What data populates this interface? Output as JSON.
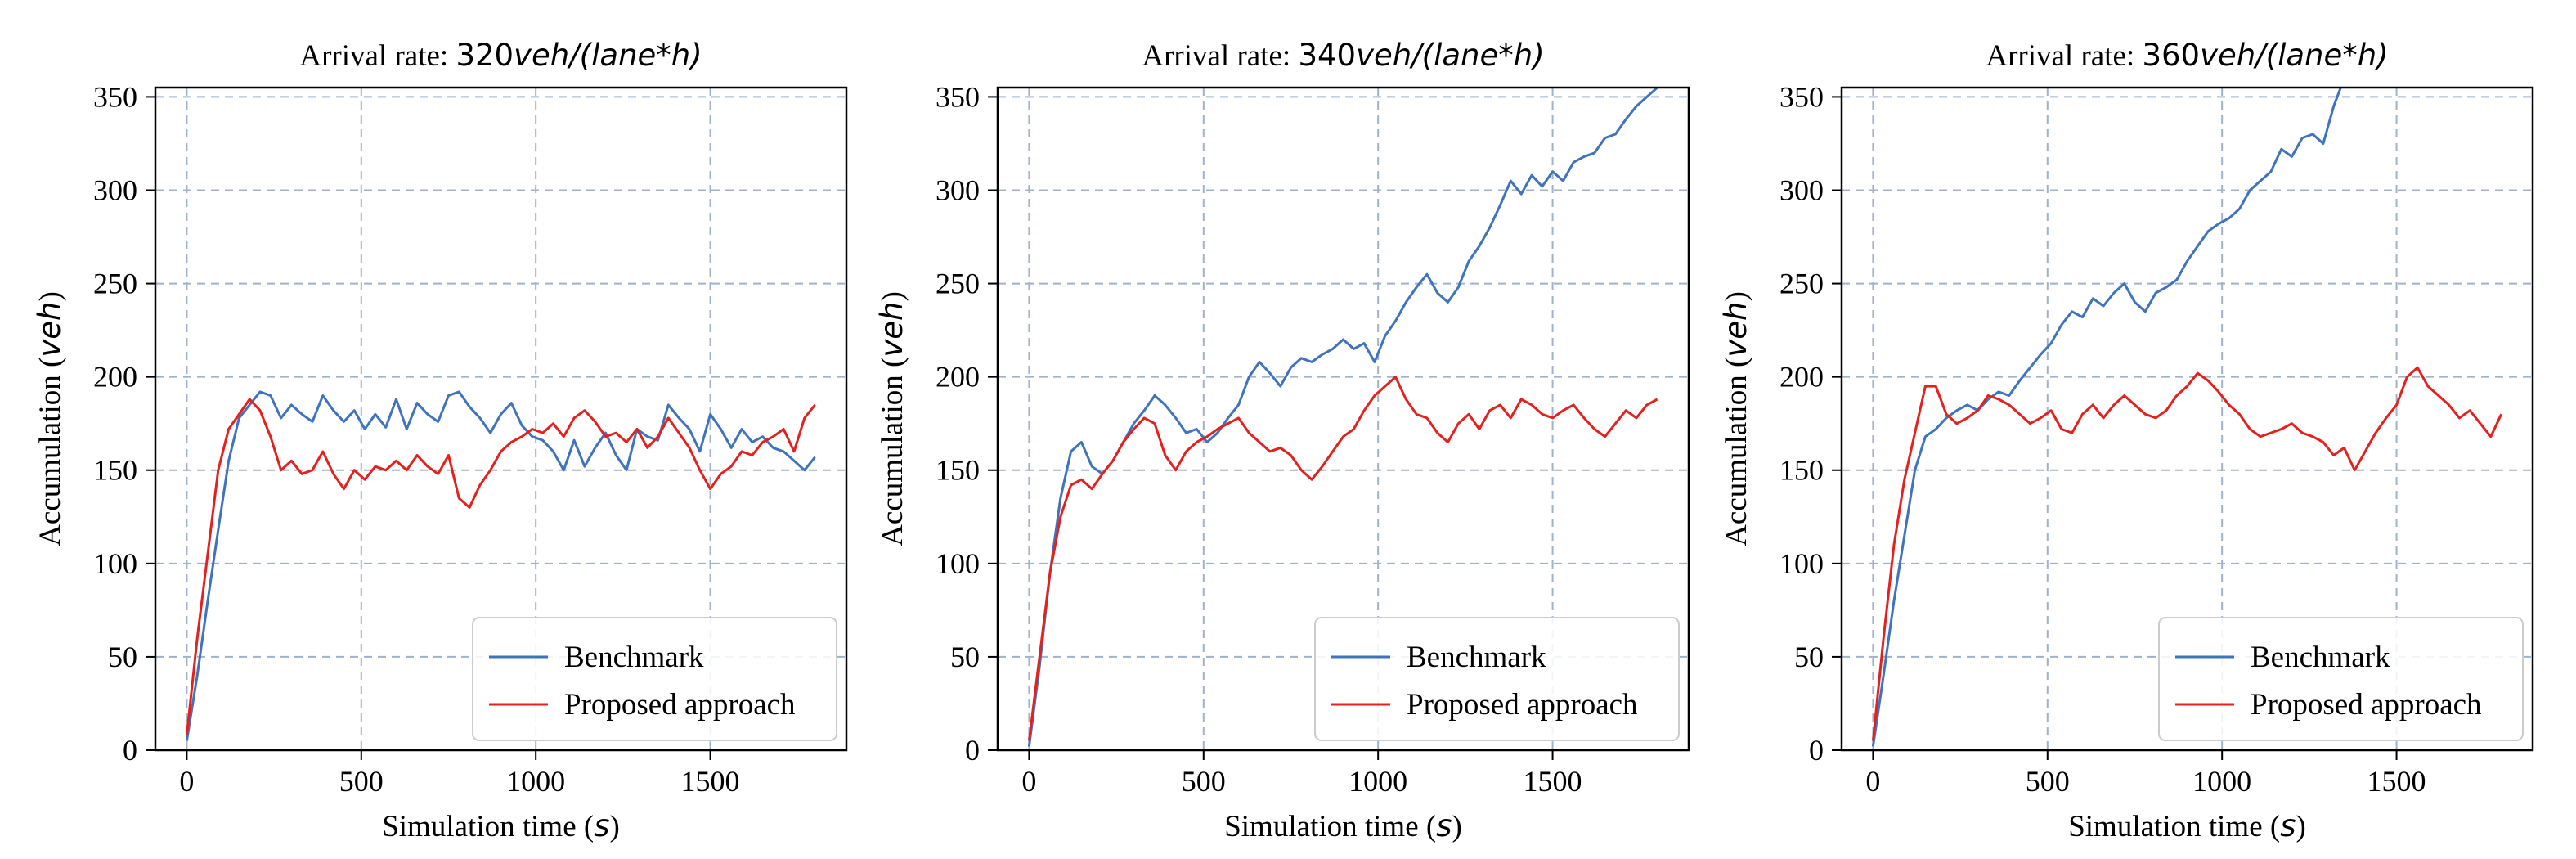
{
  "colors": {
    "benchmark": "#3f73bd",
    "proposed": "#e3211f",
    "grid": "#9fb2cc",
    "axes": "#000000"
  },
  "chart_data": [
    {
      "type": "line",
      "title_prefix": "Arrival rate: ",
      "title_math": "320",
      "title_unit": "veh/(lane*h)",
      "xlabel_text": "Simulation time (",
      "xlabel_unit": "s",
      "ylabel_text": "Accumulation (",
      "ylabel_unit": "veh",
      "xlim": [
        -90,
        1890
      ],
      "ylim": [
        0,
        355
      ],
      "xticks": [
        0,
        500,
        1000,
        1500
      ],
      "yticks": [
        0,
        50,
        100,
        150,
        200,
        250,
        300,
        350
      ],
      "grid": true,
      "legend_position": "lower-right",
      "series": [
        {
          "name": "Benchmark",
          "x": [
            0,
            30,
            60,
            90,
            120,
            150,
            180,
            210,
            240,
            270,
            300,
            330,
            360,
            390,
            420,
            450,
            480,
            510,
            540,
            570,
            600,
            630,
            660,
            690,
            720,
            750,
            780,
            810,
            840,
            870,
            900,
            930,
            960,
            990,
            1020,
            1050,
            1080,
            1110,
            1140,
            1170,
            1200,
            1230,
            1260,
            1290,
            1320,
            1350,
            1380,
            1410,
            1440,
            1470,
            1500,
            1530,
            1560,
            1590,
            1620,
            1650,
            1680,
            1710,
            1740,
            1770,
            1800
          ],
          "y": [
            5,
            40,
            80,
            118,
            155,
            178,
            185,
            192,
            190,
            178,
            185,
            180,
            176,
            190,
            182,
            176,
            182,
            172,
            180,
            173,
            188,
            172,
            186,
            180,
            176,
            190,
            192,
            184,
            178,
            170,
            180,
            186,
            174,
            168,
            166,
            160,
            150,
            166,
            152,
            162,
            170,
            158,
            150,
            172,
            168,
            166,
            185,
            178,
            172,
            160,
            180,
            172,
            162,
            172,
            165,
            168,
            162,
            160,
            155,
            150,
            157
          ]
        },
        {
          "name": "Proposed approach",
          "x": [
            0,
            30,
            60,
            90,
            120,
            150,
            180,
            210,
            240,
            270,
            300,
            330,
            360,
            390,
            420,
            450,
            480,
            510,
            540,
            570,
            600,
            630,
            660,
            690,
            720,
            750,
            780,
            810,
            840,
            870,
            900,
            930,
            960,
            990,
            1020,
            1050,
            1080,
            1110,
            1140,
            1170,
            1200,
            1230,
            1260,
            1290,
            1320,
            1350,
            1380,
            1410,
            1440,
            1470,
            1500,
            1530,
            1560,
            1590,
            1620,
            1650,
            1680,
            1710,
            1740,
            1770,
            1800
          ],
          "y": [
            8,
            60,
            105,
            150,
            172,
            180,
            188,
            182,
            168,
            150,
            155,
            148,
            150,
            160,
            148,
            140,
            150,
            145,
            152,
            150,
            155,
            150,
            158,
            152,
            148,
            158,
            135,
            130,
            142,
            150,
            160,
            165,
            168,
            172,
            170,
            175,
            168,
            178,
            182,
            176,
            168,
            170,
            165,
            172,
            162,
            168,
            178,
            170,
            162,
            150,
            140,
            148,
            152,
            160,
            158,
            165,
            168,
            172,
            160,
            178,
            185
          ]
        }
      ]
    },
    {
      "type": "line",
      "title_prefix": "Arrival rate: ",
      "title_math": "340",
      "title_unit": "veh/(lane*h)",
      "xlabel_text": "Simulation time (",
      "xlabel_unit": "s",
      "ylabel_text": "Accumulation (",
      "ylabel_unit": "veh",
      "xlim": [
        -90,
        1890
      ],
      "ylim": [
        0,
        355
      ],
      "xticks": [
        0,
        500,
        1000,
        1500
      ],
      "yticks": [
        0,
        50,
        100,
        150,
        200,
        250,
        300,
        350
      ],
      "grid": true,
      "legend_position": "lower-right",
      "series": [
        {
          "name": "Benchmark",
          "x": [
            0,
            30,
            60,
            90,
            120,
            150,
            180,
            210,
            240,
            270,
            300,
            330,
            360,
            390,
            420,
            450,
            480,
            510,
            540,
            570,
            600,
            630,
            660,
            690,
            720,
            750,
            780,
            810,
            840,
            870,
            900,
            930,
            960,
            990,
            1020,
            1050,
            1080,
            1110,
            1140,
            1170,
            1200,
            1230,
            1260,
            1290,
            1320,
            1350,
            1380,
            1410,
            1440,
            1470,
            1500,
            1530,
            1560,
            1590,
            1620,
            1650,
            1680,
            1710,
            1740,
            1770,
            1800
          ],
          "y": [
            2,
            45,
            95,
            135,
            160,
            165,
            152,
            148,
            155,
            165,
            175,
            182,
            190,
            185,
            178,
            170,
            172,
            165,
            170,
            178,
            185,
            200,
            208,
            202,
            195,
            205,
            210,
            208,
            212,
            215,
            220,
            215,
            218,
            208,
            222,
            230,
            240,
            248,
            255,
            245,
            240,
            248,
            262,
            270,
            280,
            292,
            305,
            298,
            308,
            302,
            310,
            305,
            315,
            318,
            320,
            328,
            330,
            338,
            345,
            350,
            355
          ]
        },
        {
          "name": "Proposed approach",
          "x": [
            0,
            30,
            60,
            90,
            120,
            150,
            180,
            210,
            240,
            270,
            300,
            330,
            360,
            390,
            420,
            450,
            480,
            510,
            540,
            570,
            600,
            630,
            660,
            690,
            720,
            750,
            780,
            810,
            840,
            870,
            900,
            930,
            960,
            990,
            1020,
            1050,
            1080,
            1110,
            1140,
            1170,
            1200,
            1230,
            1260,
            1290,
            1320,
            1350,
            1380,
            1410,
            1440,
            1470,
            1500,
            1530,
            1560,
            1590,
            1620,
            1650,
            1680,
            1710,
            1740,
            1770,
            1800
          ],
          "y": [
            5,
            50,
            95,
            125,
            142,
            145,
            140,
            148,
            155,
            165,
            172,
            178,
            175,
            158,
            150,
            160,
            165,
            168,
            172,
            175,
            178,
            170,
            165,
            160,
            162,
            158,
            150,
            145,
            152,
            160,
            168,
            172,
            182,
            190,
            195,
            200,
            188,
            180,
            178,
            170,
            165,
            175,
            180,
            172,
            182,
            185,
            178,
            188,
            185,
            180,
            178,
            182,
            185,
            178,
            172,
            168,
            175,
            182,
            178,
            185,
            188
          ]
        }
      ]
    },
    {
      "type": "line",
      "title_prefix": "Arrival rate: ",
      "title_math": "360",
      "title_unit": "veh/(lane*h)",
      "xlabel_text": "Simulation time (",
      "xlabel_unit": "s",
      "ylabel_text": "Accumulation (",
      "ylabel_unit": "veh",
      "xlim": [
        -90,
        1890
      ],
      "ylim": [
        0,
        355
      ],
      "xticks": [
        0,
        500,
        1000,
        1500
      ],
      "yticks": [
        0,
        50,
        100,
        150,
        200,
        250,
        300,
        350
      ],
      "grid": true,
      "legend_position": "lower-right",
      "series": [
        {
          "name": "Benchmark",
          "x": [
            0,
            30,
            60,
            90,
            120,
            150,
            180,
            210,
            240,
            270,
            300,
            330,
            360,
            390,
            420,
            450,
            480,
            510,
            540,
            570,
            600,
            630,
            660,
            690,
            720,
            750,
            780,
            810,
            840,
            870,
            900,
            930,
            960,
            990,
            1020,
            1050,
            1080,
            1110,
            1140,
            1170,
            1200,
            1230,
            1260,
            1290,
            1320,
            1340
          ],
          "y": [
            2,
            40,
            80,
            115,
            150,
            168,
            172,
            178,
            182,
            185,
            182,
            188,
            192,
            190,
            198,
            205,
            212,
            218,
            228,
            235,
            232,
            242,
            238,
            245,
            250,
            240,
            235,
            245,
            248,
            252,
            262,
            270,
            278,
            282,
            285,
            290,
            300,
            305,
            310,
            322,
            318,
            328,
            330,
            325,
            345,
            355
          ]
        },
        {
          "name": "Proposed approach",
          "x": [
            0,
            30,
            60,
            90,
            120,
            150,
            180,
            210,
            240,
            270,
            300,
            330,
            360,
            390,
            420,
            450,
            480,
            510,
            540,
            570,
            600,
            630,
            660,
            690,
            720,
            750,
            780,
            810,
            840,
            870,
            900,
            930,
            960,
            990,
            1020,
            1050,
            1080,
            1110,
            1140,
            1170,
            1200,
            1230,
            1260,
            1290,
            1320,
            1350,
            1380,
            1410,
            1440,
            1470,
            1500,
            1530,
            1560,
            1590,
            1620,
            1650,
            1680,
            1710,
            1740,
            1770,
            1800
          ],
          "y": [
            5,
            60,
            110,
            145,
            170,
            195,
            195,
            180,
            175,
            178,
            182,
            190,
            188,
            185,
            180,
            175,
            178,
            182,
            172,
            170,
            180,
            185,
            178,
            185,
            190,
            185,
            180,
            178,
            182,
            190,
            195,
            202,
            198,
            192,
            185,
            180,
            172,
            168,
            170,
            172,
            175,
            170,
            168,
            165,
            158,
            162,
            150,
            160,
            170,
            178,
            185,
            200,
            205,
            195,
            190,
            185,
            178,
            182,
            175,
            168,
            180
          ]
        }
      ]
    }
  ]
}
